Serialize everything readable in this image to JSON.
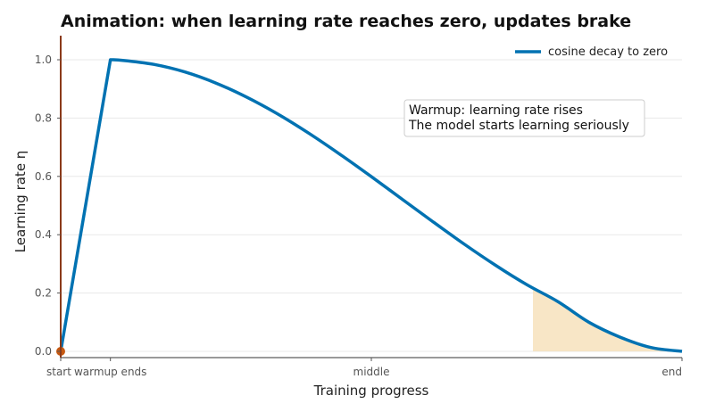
{
  "chart_data": {
    "type": "line",
    "title": "Animation: when learning rate reaches zero, updates brake",
    "xlabel": "Training progress",
    "ylabel": "Learning rate η",
    "xlim": [
      0,
      1
    ],
    "ylim": [
      0,
      1.0
    ],
    "y_ticks": [
      0.0,
      0.2,
      0.4,
      0.6,
      0.8,
      1.0
    ],
    "y_tick_labels": [
      "0.0",
      "0.2",
      "0.4",
      "0.6",
      "0.8",
      "1.0"
    ],
    "x_ticks": [
      0,
      0.08,
      0.5,
      1
    ],
    "x_tick_labels": [
      "start",
      "warmup ends",
      "middle",
      "end"
    ],
    "grid": "horizontal",
    "warmup_fraction": 0.08,
    "series": [
      {
        "name": "cosine decay to zero",
        "color": "#0072b2",
        "x": [
          0.0,
          0.08,
          0.1,
          0.15,
          0.2,
          0.25,
          0.3,
          0.35,
          0.4,
          0.45,
          0.5,
          0.55,
          0.6,
          0.65,
          0.7,
          0.75,
          0.8,
          0.85,
          0.9,
          0.95,
          1.0
        ],
        "y": [
          0.0,
          1.0,
          0.998,
          0.984,
          0.958,
          0.92,
          0.871,
          0.813,
          0.747,
          0.675,
          0.599,
          0.521,
          0.443,
          0.367,
          0.295,
          0.229,
          0.171,
          0.1,
          0.049,
          0.013,
          0.0
        ]
      }
    ],
    "legend": {
      "position": "top-right"
    },
    "shaded_region": {
      "x_start": 0.76,
      "x_end": 1.0,
      "color": "#f5deb3"
    },
    "marker": {
      "x": 0.0,
      "y": 0.0,
      "color": "#c65911"
    },
    "progress_line": {
      "x": 0.0,
      "color": "#8b3a1a"
    },
    "annotation": {
      "lines": [
        "Warmup: learning rate rises",
        "The model starts learning seriously"
      ],
      "x": 0.56,
      "y": 0.84
    }
  }
}
